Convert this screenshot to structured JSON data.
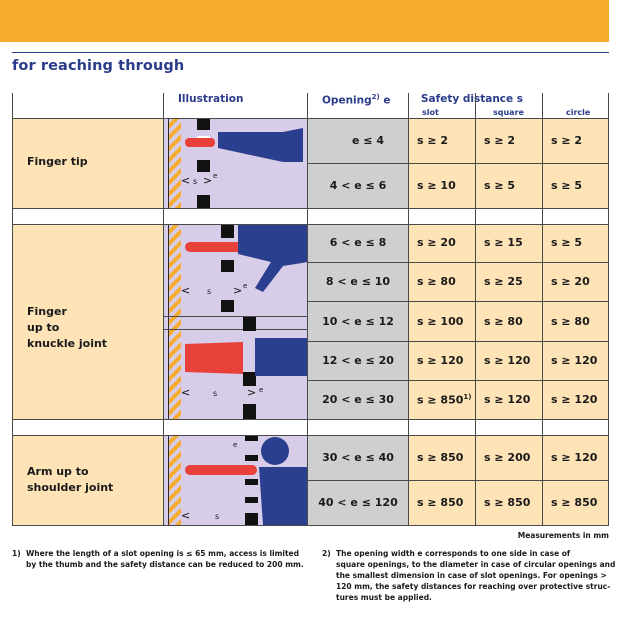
{
  "page": {
    "subtitle": "for reaching through",
    "measurements_note": "Measurements in mm"
  },
  "table": {
    "headers": {
      "illustration": "Illustration",
      "opening": "Opening",
      "opening_sup": "2)",
      "opening_var": " e",
      "safety": "Safety distance s",
      "slot": "slot",
      "square": "square",
      "circle": "circle"
    },
    "groups": [
      {
        "label": "Finger tip",
        "rows": [
          {
            "opening": "e ≤ 4",
            "slot": "s ≥ 2",
            "square": "s ≥ 2",
            "circle": "s ≥ 2"
          },
          {
            "opening": "4 < e ≤ 6",
            "slot": "s ≥ 10",
            "square": "s ≥ 5",
            "circle": "s ≥ 5"
          }
        ]
      },
      {
        "label_lines": [
          "Finger",
          "up to",
          "knuckle joint"
        ],
        "rows": [
          {
            "opening": "6 < e ≤ 8",
            "slot": "s ≥ 20",
            "square": "s ≥ 15",
            "circle": "s ≥ 5"
          },
          {
            "opening": "8 < e ≤ 10",
            "slot": "s ≥ 80",
            "square": "s ≥ 25",
            "circle": "s ≥ 20"
          },
          {
            "opening": "10 < e ≤ 12",
            "slot": "s ≥ 100",
            "square": "s ≥ 80",
            "circle": "s ≥ 80"
          },
          {
            "opening": "12 < e ≤ 20",
            "slot": "s ≥ 120",
            "square": "s ≥ 120",
            "circle": "s ≥ 120"
          },
          {
            "opening": "20 < e ≤ 30",
            "slot": "s ≥ 850",
            "slot_sup": "1)",
            "square": "s ≥ 120",
            "circle": "s ≥ 120"
          }
        ]
      },
      {
        "label_lines": [
          "Arm up to",
          "shoulder joint"
        ],
        "rows": [
          {
            "opening": "30 < e ≤ 40",
            "slot": "s ≥ 850",
            "square": "s ≥ 200",
            "circle": "s ≥ 120"
          },
          {
            "opening": "40 < e ≤ 120",
            "slot": "s ≥ 850",
            "square": "s ≥ 850",
            "circle": "s ≥ 850"
          }
        ]
      }
    ],
    "illustration_labels": {
      "s": "s",
      "e": "e"
    }
  },
  "footnotes": [
    {
      "num": "1)",
      "text": "Where the length of a slot opening is ≤ 65 mm, access is limited\nby the thumb and the safety distance can be reduced to 200 mm."
    },
    {
      "num": "2)",
      "text": "The opening width e corresponds to one side in case of\nsquare openings, to the diameter in case of circular openings and\nthe smallest dimension in case of slot openings. For openings >\n120 mm, the safety distances for reaching over protective struc-\ntures must be applied."
    }
  ],
  "colors": {
    "banner": "#f6ac2f",
    "heading_blue": "#2a3c8a",
    "cream": "#fde3b6",
    "grey": "#cfcfcf",
    "illustration_bg": "#d8cde8",
    "finger_red": "#e8413a",
    "body_blue": "#2b3f8f",
    "hatch_yellow": "#f6ac2f"
  }
}
